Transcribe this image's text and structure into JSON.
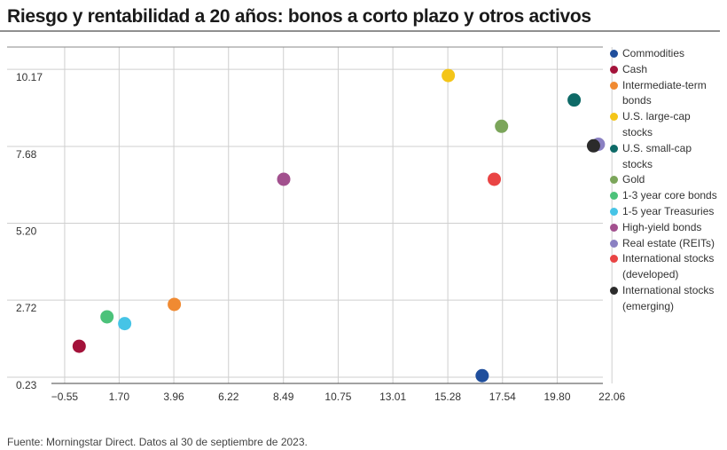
{
  "title": "Riesgo y rentabilidad a 20 años: bonos a corto plazo y otros activos",
  "footer": "Fuente: Morningstar Direct. Datos al 30 de septiembre de 2023.",
  "chart_data": {
    "type": "scatter",
    "title": "Riesgo y rentabilidad a 20 años: bonos a corto plazo y otros activos",
    "xlabel": "",
    "ylabel": "",
    "xlim": [
      -1.5,
      22.9
    ],
    "ylim": [
      -0.35,
      10.6
    ],
    "x_ticks": [
      "−0.55",
      "1.70",
      "3.96",
      "6.22",
      "8.49",
      "10.75",
      "13.01",
      "15.28",
      "17.54",
      "19.80",
      "22.06"
    ],
    "x_tick_values": [
      -0.55,
      1.7,
      3.96,
      6.22,
      8.49,
      10.75,
      13.01,
      15.28,
      17.54,
      19.8,
      22.06
    ],
    "y_ticks": [
      "0.23",
      "2.72",
      "5.20",
      "7.68",
      "10.17"
    ],
    "y_tick_values": [
      0.23,
      2.72,
      5.2,
      7.68,
      10.17
    ],
    "grid": "vertical and horizontal",
    "legend_position": "right",
    "series": [
      {
        "name": "Commodities",
        "color": "#1f4e9c",
        "x": 16.7,
        "y": 0.28
      },
      {
        "name": "Cash",
        "color": "#a3123a",
        "x": 0.05,
        "y": 1.23
      },
      {
        "name": "Intermediate-term bonds",
        "color": "#f08a32",
        "x": 3.98,
        "y": 2.58
      },
      {
        "name": "U.S. large-cap stocks",
        "color": "#f4c518",
        "x": 15.3,
        "y": 9.97
      },
      {
        "name": "U.S. small-cap stocks",
        "color": "#0e6a67",
        "x": 20.5,
        "y": 9.18
      },
      {
        "name": "Gold",
        "color": "#7ba55a",
        "x": 17.5,
        "y": 8.33
      },
      {
        "name": "1-3 year core bonds",
        "color": "#4cc27a",
        "x": 1.2,
        "y": 2.18
      },
      {
        "name": "1-5 year Treasuries",
        "color": "#46c4e6",
        "x": 1.93,
        "y": 1.96
      },
      {
        "name": "High-yield bonds",
        "color": "#a2508e",
        "x": 8.5,
        "y": 6.62
      },
      {
        "name": "Real estate (REITs)",
        "color": "#8a80c2",
        "x": 21.5,
        "y": 7.75
      },
      {
        "name": "International stocks (developed)",
        "color": "#e94444",
        "x": 17.2,
        "y": 6.62
      },
      {
        "name": "International stocks (emerging)",
        "color": "#2b2b2b",
        "x": 21.3,
        "y": 7.7
      }
    ]
  }
}
